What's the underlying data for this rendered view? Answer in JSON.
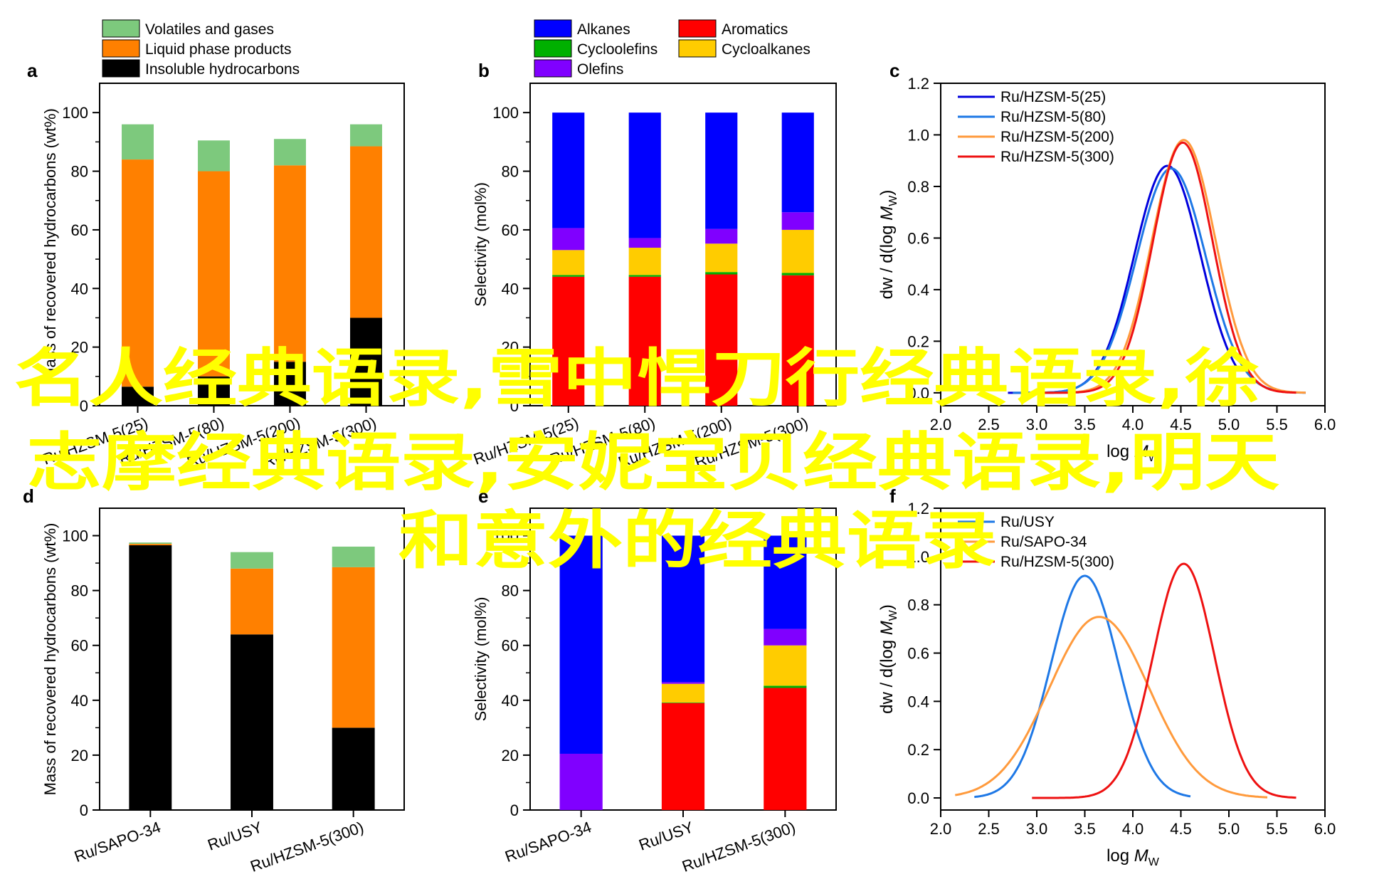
{
  "overlay": {
    "lines": [
      "名人经典语录,雪中悍刀行经典语录,徐",
      "志摩经典语录,安妮宝贝经典语录,明天",
      "和意外的经典语录"
    ],
    "color": "#FFFF00"
  },
  "colors": {
    "volatiles": "#7DC97D",
    "liquid": "#FF8000",
    "insoluble": "#000000",
    "alkanes": "#0000FF",
    "olefins": "#8000FF",
    "cycloalkanes": "#FFCC00",
    "cycloolefins": "#00B000",
    "aromatics": "#FF0000"
  },
  "chart_data": [
    {
      "panel": "a",
      "type": "bar",
      "stacked": true,
      "ylabel": "Mass of recovered hydrocarbons (wt%)",
      "ylim": [
        0,
        110
      ],
      "yticks": [
        0,
        20,
        40,
        60,
        80,
        100
      ],
      "categories": [
        "Ru/HZSM-5(25)",
        "Ru/HZSM-5(80)",
        "Ru/HZSM-5(200)",
        "Ru/HZSM-5(300)"
      ],
      "series": [
        {
          "name": "Insoluble hydrocarbons",
          "color_key": "insoluble",
          "values": [
            6.5,
            10,
            15,
            30
          ]
        },
        {
          "name": "Liquid phase products",
          "color_key": "liquid",
          "values": [
            77.5,
            70,
            67,
            58.5
          ]
        },
        {
          "name": "Volatiles and gases",
          "color_key": "volatiles",
          "values": [
            12,
            10.5,
            9,
            7.5
          ]
        }
      ],
      "legend_order": [
        2,
        1,
        0
      ]
    },
    {
      "panel": "b",
      "type": "bar",
      "stacked": true,
      "ylabel": "Selectivity (mol%)",
      "ylim": [
        0,
        110
      ],
      "yticks": [
        0,
        20,
        40,
        60,
        80,
        100
      ],
      "categories": [
        "Ru/HZSM-5(25)",
        "Ru/HZSM-5(80)",
        "Ru/HZSM-5(200)",
        "Ru/HZSM-5(300)"
      ],
      "series": [
        {
          "name": "Aromatics",
          "color_key": "aromatics",
          "values": [
            44,
            44,
            44.8,
            44.5
          ]
        },
        {
          "name": "Cycloolefins",
          "color_key": "cycloolefins",
          "values": [
            0.6,
            0.6,
            0.8,
            0.8
          ]
        },
        {
          "name": "Cycloalkanes",
          "color_key": "cycloalkanes",
          "values": [
            8.5,
            9.3,
            9.7,
            14.7
          ]
        },
        {
          "name": "Olefins",
          "color_key": "olefins",
          "values": [
            7.5,
            3.3,
            5,
            6
          ]
        },
        {
          "name": "Alkanes",
          "color_key": "alkanes",
          "values": [
            39.4,
            42.8,
            39.7,
            34
          ]
        }
      ],
      "legend_order": [
        4,
        1,
        3,
        0,
        2
      ]
    },
    {
      "panel": "c",
      "type": "line",
      "xlabel_main": "log ",
      "xlabel_ital": "M",
      "xlabel_sub": "W",
      "ylabel_main": "dw / d(log ",
      "ylabel_ital": "M",
      "ylabel_sub": "W",
      "ylabel_end": ")",
      "xlim": [
        2.0,
        6.0
      ],
      "ylim": [
        -0.05,
        1.2
      ],
      "xticks": [
        2.0,
        2.5,
        3.0,
        3.5,
        4.0,
        4.5,
        5.0,
        5.5,
        6.0
      ],
      "yticks": [
        0.0,
        0.2,
        0.4,
        0.6,
        0.8,
        1.0,
        1.2
      ],
      "series": [
        {
          "name": "Ru/HZSM-5(25)",
          "color": "#0000DD",
          "mu": 4.36,
          "sigma": 0.345,
          "amp": 0.88,
          "xmin": 2.7,
          "xmax": 5.1
        },
        {
          "name": "Ru/HZSM-5(80)",
          "color": "#1E78E6",
          "mu": 4.4,
          "sigma": 0.36,
          "amp": 0.87,
          "xmin": 2.75,
          "xmax": 5.8
        },
        {
          "name": "Ru/HZSM-5(200)",
          "color": "#FF9A3C",
          "mu": 4.53,
          "sigma": 0.33,
          "amp": 0.98,
          "xmin": 3.0,
          "xmax": 5.8
        },
        {
          "name": "Ru/HZSM-5(300)",
          "color": "#EE1111",
          "mu": 4.52,
          "sigma": 0.31,
          "amp": 0.97,
          "xmin": 3.0,
          "xmax": 5.7
        }
      ]
    },
    {
      "panel": "d",
      "type": "bar",
      "stacked": true,
      "ylabel": "Mass of recovered hydrocarbons (wt%)",
      "ylim": [
        0,
        110
      ],
      "yticks": [
        0,
        20,
        40,
        60,
        80,
        100
      ],
      "categories": [
        "Ru/SAPO-34",
        "Ru/USY",
        "Ru/HZSM-5(300)"
      ],
      "series": [
        {
          "name": "Insoluble hydrocarbons",
          "color_key": "insoluble",
          "values": [
            96.5,
            64,
            30
          ]
        },
        {
          "name": "Liquid phase products",
          "color_key": "liquid",
          "values": [
            0.5,
            24,
            58.5
          ]
        },
        {
          "name": "Volatiles and gases",
          "color_key": "volatiles",
          "values": [
            0.5,
            6,
            7.5
          ]
        }
      ]
    },
    {
      "panel": "e",
      "type": "bar",
      "stacked": true,
      "ylabel": "Selectivity (mol%)",
      "ylim": [
        0,
        110
      ],
      "yticks": [
        0,
        20,
        40,
        60,
        80,
        100
      ],
      "categories": [
        "Ru/SAPO-34",
        "Ru/USY",
        "Ru/HZSM-5(300)"
      ],
      "series": [
        {
          "name": "Aromatics",
          "color_key": "aromatics",
          "values": [
            0,
            39,
            44.5
          ]
        },
        {
          "name": "Cycloolefins",
          "color_key": "cycloolefins",
          "values": [
            0,
            0.2,
            0.8
          ]
        },
        {
          "name": "Cycloalkanes",
          "color_key": "cycloalkanes",
          "values": [
            0,
            6.8,
            14.7
          ]
        },
        {
          "name": "Olefins",
          "color_key": "olefins",
          "values": [
            20.5,
            0.6,
            6
          ]
        },
        {
          "name": "Alkanes",
          "color_key": "alkanes",
          "values": [
            79.5,
            53.4,
            34
          ]
        }
      ]
    },
    {
      "panel": "f",
      "type": "line",
      "xlabel_main": "log ",
      "xlabel_ital": "M",
      "xlabel_sub": "W",
      "ylabel_main": "dw / d(log ",
      "ylabel_ital": "M",
      "ylabel_sub": "W",
      "ylabel_end": ")",
      "xlim": [
        2.0,
        6.0
      ],
      "ylim": [
        -0.05,
        1.2
      ],
      "xticks": [
        2.0,
        2.5,
        3.0,
        3.5,
        4.0,
        4.5,
        5.0,
        5.5,
        6.0
      ],
      "yticks": [
        0.0,
        0.2,
        0.4,
        0.6,
        0.8,
        1.0,
        1.2
      ],
      "series": [
        {
          "name": "Ru/USY",
          "color": "#1E78E6",
          "mu": 3.5,
          "sigma": 0.35,
          "amp": 0.92,
          "xmin": 2.35,
          "xmax": 4.6
        },
        {
          "name": "Ru/SAPO-34",
          "color": "#FF9A3C",
          "mu": 3.65,
          "sigma": 0.52,
          "amp": 0.75,
          "xmin": 2.15,
          "xmax": 5.4
        },
        {
          "name": "Ru/HZSM-5(300)",
          "color": "#EE1111",
          "mu": 4.53,
          "sigma": 0.32,
          "amp": 0.97,
          "xmin": 2.95,
          "xmax": 5.7
        }
      ]
    }
  ]
}
